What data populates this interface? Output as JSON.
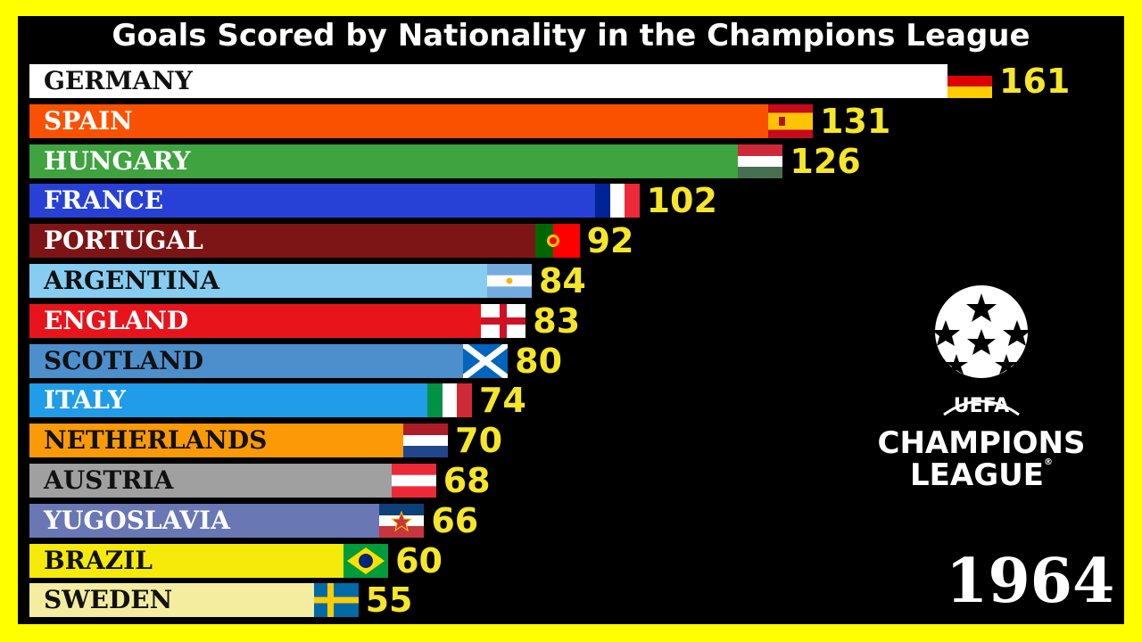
{
  "chart_data": {
    "type": "bar",
    "orientation": "horizontal",
    "title": "Goals Scored by Nationality in the Champions League",
    "year": "1964",
    "categories": [
      "GERMANY",
      "SPAIN",
      "HUNGARY",
      "FRANCE",
      "PORTUGAL",
      "ARGENTINA",
      "ENGLAND",
      "SCOTLAND",
      "ITALY",
      "NETHERLANDS",
      "AUSTRIA",
      "YUGOSLAVIA",
      "BRAZIL",
      "SWEDEN"
    ],
    "values": [
      161,
      131,
      126,
      102,
      92,
      84,
      83,
      80,
      74,
      70,
      68,
      66,
      60,
      55
    ],
    "bar_colors": [
      "#ffffff",
      "#fa5100",
      "#3fa33f",
      "#2741d6",
      "#7d1516",
      "#87cdf2",
      "#e8141c",
      "#4c8fcc",
      "#209ce8",
      "#fb9a06",
      "#a0a0a0",
      "#6977b5",
      "#f5ea0a",
      "#f4eda0"
    ],
    "label_colors": [
      "#111111",
      "#ffffff",
      "#ffffff",
      "#ffffff",
      "#ffffff",
      "#111111",
      "#ffffff",
      "#111111",
      "#ffffff",
      "#111111",
      "#111111",
      "#ffffff",
      "#111111",
      "#111111"
    ],
    "flags": [
      "germany",
      "spain",
      "hungary",
      "france",
      "portugal",
      "argentina",
      "england",
      "scotland",
      "italy",
      "netherlands",
      "austria",
      "yugoslavia",
      "brazil",
      "sweden"
    ],
    "value_color": "#f5e62a"
  },
  "logo": {
    "line1": "UEFA",
    "line2": "CHAMPIONS",
    "line3": "LEAGUE",
    "mark": "®"
  },
  "colors": {
    "frame_border": "#ffff00",
    "background": "#000000"
  }
}
